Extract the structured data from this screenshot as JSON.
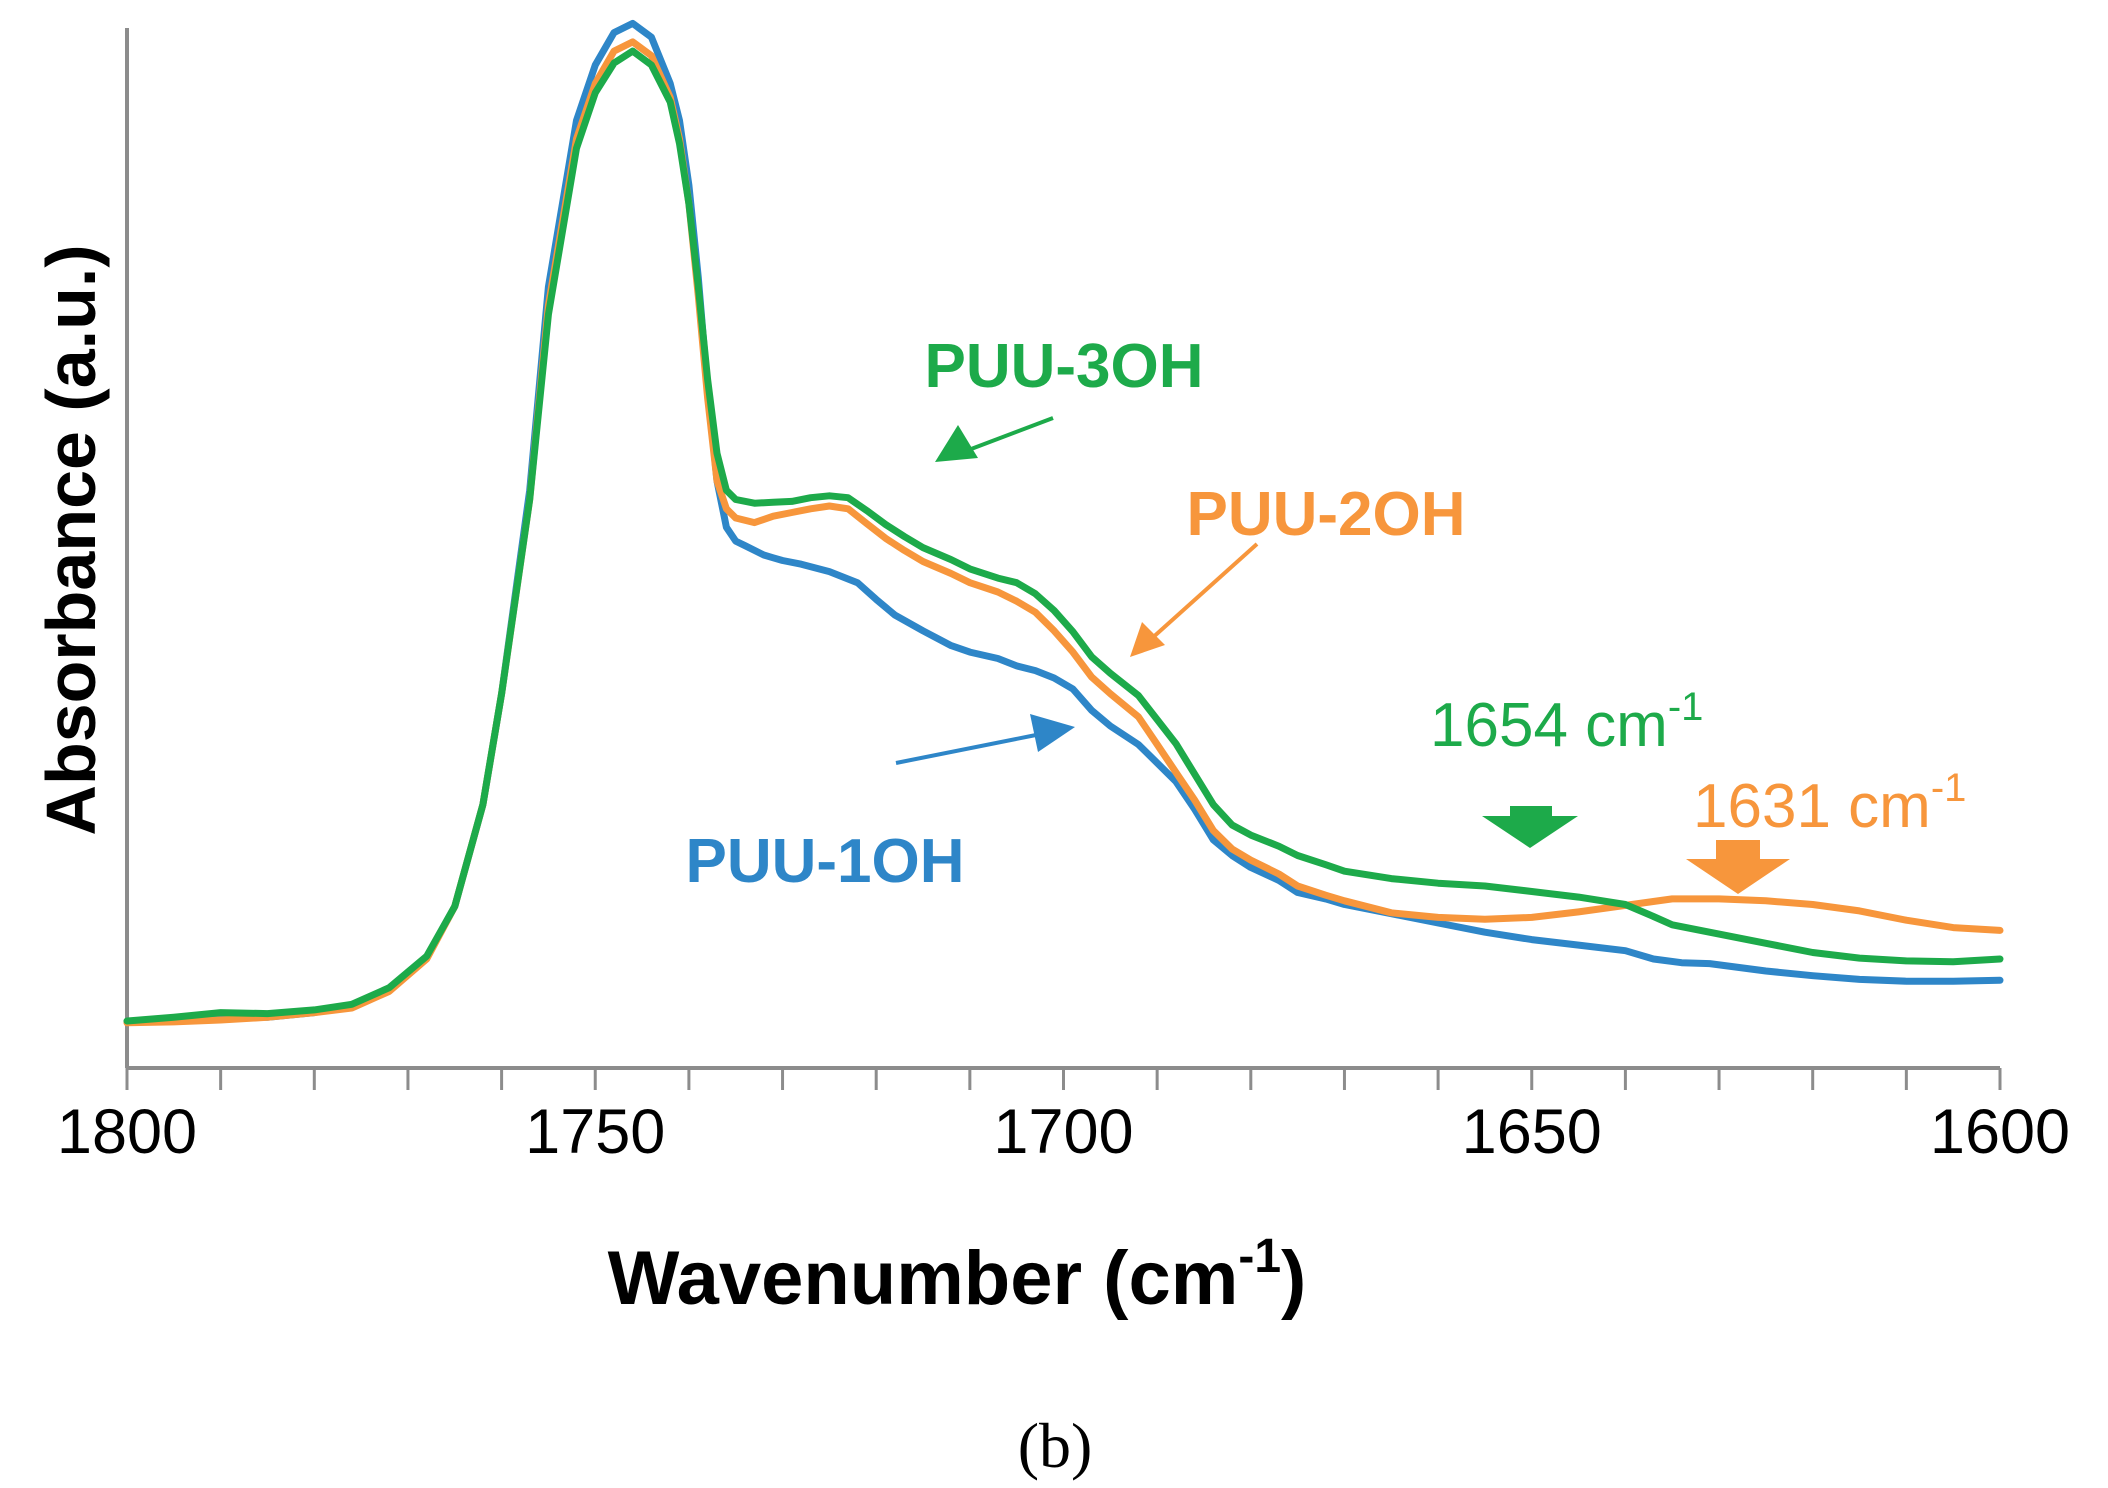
{
  "chart_data": {
    "type": "line",
    "title": "",
    "xlabel": "Wavenumber (cm",
    "xlabel_sup": "-1",
    "xlabel_close": ")",
    "ylabel": "Absorbance (a.u.)",
    "xlim": [
      1800,
      1600
    ],
    "ylim": [
      0,
      1.1
    ],
    "x_ticks": [
      "1800",
      "1750",
      "1700",
      "1650",
      "1600"
    ],
    "grid": false,
    "series": [
      {
        "name": "PUU-1OH",
        "color": "#2E86C8",
        "x": [
          1800,
          1795,
          1790,
          1785,
          1780,
          1776,
          1772,
          1768,
          1765,
          1762,
          1760,
          1757,
          1755,
          1752,
          1750,
          1748,
          1746,
          1744,
          1742,
          1741,
          1740,
          1739,
          1738,
          1737,
          1736,
          1735,
          1734,
          1733,
          1732,
          1731,
          1730,
          1728,
          1725,
          1722,
          1720,
          1718,
          1715,
          1712,
          1710,
          1707,
          1705,
          1703,
          1701,
          1699,
          1697,
          1695,
          1692,
          1690,
          1688,
          1686,
          1684,
          1682,
          1680,
          1677,
          1675,
          1672,
          1670,
          1665,
          1660,
          1655,
          1650,
          1645,
          1640,
          1637,
          1634,
          1631,
          1625,
          1620,
          1615,
          1610,
          1605,
          1600
        ],
        "y": [
          0.025,
          0.026,
          0.03,
          0.03,
          0.035,
          0.042,
          0.06,
          0.095,
          0.15,
          0.26,
          0.38,
          0.6,
          0.82,
          1.0,
          1.06,
          1.095,
          1.105,
          1.09,
          1.04,
          1.0,
          0.93,
          0.83,
          0.71,
          0.61,
          0.56,
          0.545,
          0.54,
          0.535,
          0.53,
          0.527,
          0.524,
          0.52,
          0.512,
          0.5,
          0.482,
          0.465,
          0.448,
          0.432,
          0.425,
          0.418,
          0.41,
          0.405,
          0.397,
          0.385,
          0.362,
          0.345,
          0.325,
          0.305,
          0.285,
          0.255,
          0.222,
          0.205,
          0.192,
          0.178,
          0.165,
          0.158,
          0.152,
          0.142,
          0.132,
          0.122,
          0.114,
          0.108,
          0.102,
          0.093,
          0.089,
          0.088,
          0.08,
          0.075,
          0.071,
          0.069,
          0.069,
          0.07
        ]
      },
      {
        "name": "PUU-2OH",
        "color": "#F7963C",
        "x": [
          1800,
          1795,
          1790,
          1785,
          1780,
          1776,
          1772,
          1768,
          1765,
          1762,
          1760,
          1757,
          1755,
          1752,
          1750,
          1748,
          1746,
          1744,
          1742,
          1741,
          1740,
          1739,
          1738,
          1737,
          1736,
          1735,
          1733,
          1731,
          1729,
          1727,
          1725,
          1723,
          1721,
          1719,
          1717,
          1715,
          1712,
          1710,
          1707,
          1705,
          1703,
          1701,
          1699,
          1697,
          1695,
          1692,
          1690,
          1688,
          1686,
          1684,
          1682,
          1680,
          1677,
          1675,
          1672,
          1670,
          1665,
          1660,
          1655,
          1650,
          1645,
          1640,
          1635,
          1630,
          1625,
          1620,
          1615,
          1610,
          1605,
          1600
        ],
        "y": [
          0.024,
          0.025,
          0.027,
          0.03,
          0.035,
          0.04,
          0.058,
          0.093,
          0.15,
          0.26,
          0.38,
          0.59,
          0.8,
          0.98,
          1.04,
          1.075,
          1.085,
          1.07,
          1.025,
          0.98,
          0.91,
          0.81,
          0.7,
          0.61,
          0.58,
          0.57,
          0.565,
          0.572,
          0.576,
          0.58,
          0.583,
          0.58,
          0.564,
          0.548,
          0.535,
          0.523,
          0.51,
          0.5,
          0.49,
          0.48,
          0.468,
          0.448,
          0.425,
          0.398,
          0.38,
          0.355,
          0.325,
          0.295,
          0.265,
          0.232,
          0.212,
          0.2,
          0.185,
          0.172,
          0.162,
          0.156,
          0.143,
          0.138,
          0.136,
          0.138,
          0.144,
          0.151,
          0.158,
          0.158,
          0.156,
          0.152,
          0.145,
          0.135,
          0.127,
          0.124
        ]
      },
      {
        "name": "PUU-3OH",
        "color": "#1DAA4A",
        "x": [
          1800,
          1795,
          1790,
          1785,
          1780,
          1776,
          1772,
          1768,
          1765,
          1762,
          1760,
          1757,
          1755,
          1752,
          1750,
          1748,
          1746,
          1744,
          1742,
          1741,
          1740,
          1739,
          1738,
          1737,
          1736,
          1735,
          1733,
          1731,
          1729,
          1727,
          1725,
          1723,
          1721,
          1719,
          1717,
          1715,
          1712,
          1710,
          1707,
          1705,
          1703,
          1701,
          1699,
          1697,
          1695,
          1692,
          1690,
          1688,
          1686,
          1684,
          1682,
          1680,
          1677,
          1675,
          1672,
          1670,
          1665,
          1660,
          1655,
          1650,
          1645,
          1640,
          1637,
          1635,
          1630,
          1625,
          1620,
          1615,
          1610,
          1605,
          1600
        ],
        "y": [
          0.026,
          0.03,
          0.035,
          0.034,
          0.038,
          0.044,
          0.062,
          0.096,
          0.15,
          0.26,
          0.38,
          0.59,
          0.79,
          0.97,
          1.03,
          1.062,
          1.075,
          1.06,
          1.02,
          0.975,
          0.91,
          0.82,
          0.72,
          0.64,
          0.6,
          0.59,
          0.586,
          0.587,
          0.588,
          0.592,
          0.594,
          0.592,
          0.578,
          0.563,
          0.55,
          0.538,
          0.525,
          0.515,
          0.505,
          0.5,
          0.488,
          0.47,
          0.447,
          0.42,
          0.402,
          0.378,
          0.352,
          0.326,
          0.293,
          0.26,
          0.238,
          0.227,
          0.215,
          0.205,
          0.195,
          0.188,
          0.18,
          0.175,
          0.172,
          0.166,
          0.16,
          0.152,
          0.139,
          0.13,
          0.12,
          0.11,
          0.1,
          0.094,
          0.091,
          0.09,
          0.093
        ]
      }
    ],
    "series_labels": [
      {
        "series": "PUU-3OH",
        "text": "PUU-3OH",
        "color": "#1DAA4A"
      },
      {
        "series": "PUU-2OH",
        "text": "PUU-2OH",
        "color": "#F7963C"
      },
      {
        "series": "PUU-1OH",
        "text": "PUU-1OH",
        "color": "#2E86C8"
      }
    ],
    "annotations": [
      {
        "value": "1654",
        "unit": "cm",
        "sup": "-1",
        "color": "#1DAA4A"
      },
      {
        "value": "1631",
        "unit": "cm",
        "sup": "-1",
        "color": "#F7963C"
      }
    ]
  },
  "caption": "(b)"
}
